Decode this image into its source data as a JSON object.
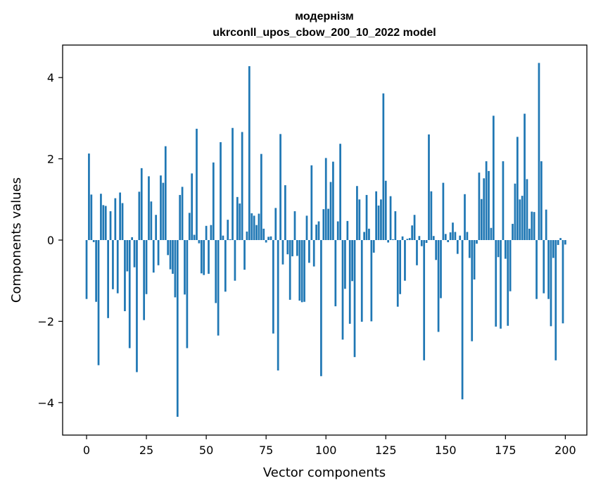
{
  "chart_data": {
    "type": "bar",
    "title_line1": "модернізм",
    "title_line2": "ukrconll_upos_cbow_200_10_2022 model",
    "xlabel": "Vector components",
    "ylabel": "Components values",
    "xlim": [
      -10,
      209
    ],
    "ylim": [
      -4.8,
      4.8
    ],
    "xticks": [
      0,
      25,
      50,
      75,
      100,
      125,
      150,
      175,
      200
    ],
    "xtick_labels": [
      "0",
      "25",
      "50",
      "75",
      "100",
      "125",
      "150",
      "175",
      "200"
    ],
    "yticks": [
      -4,
      -2,
      0,
      2,
      4
    ],
    "ytick_labels": [
      "−4",
      "−2",
      "0",
      "2",
      "4"
    ],
    "bar_color": "#1f77b4",
    "values": [
      -1.45,
      2.13,
      1.12,
      -0.05,
      -1.52,
      -3.08,
      1.14,
      0.86,
      0.84,
      -1.92,
      0.71,
      -1.21,
      1.03,
      -1.31,
      1.17,
      0.91,
      -1.75,
      -0.77,
      -2.66,
      0.07,
      -0.67,
      -3.25,
      1.19,
      1.77,
      -1.97,
      -1.33,
      1.57,
      0.95,
      -0.8,
      0.62,
      -0.62,
      1.59,
      1.41,
      2.31,
      -0.37,
      -0.72,
      -0.83,
      -1.41,
      -4.35,
      1.11,
      1.31,
      -1.34,
      -2.66,
      0.67,
      1.64,
      0.13,
      2.74,
      -0.08,
      -0.82,
      -0.86,
      0.35,
      -0.83,
      0.37,
      1.91,
      -1.55,
      -2.35,
      2.41,
      0.11,
      -1.27,
      0.5,
      0.02,
      2.76,
      -1.0,
      1.06,
      0.9,
      2.66,
      -0.73,
      0.21,
      4.28,
      0.66,
      0.6,
      0.37,
      0.65,
      2.12,
      0.28,
      -0.06,
      0.08,
      0.09,
      -2.3,
      0.79,
      -3.21,
      2.61,
      -0.6,
      1.35,
      -0.35,
      -1.47,
      -0.4,
      0.71,
      -0.39,
      -1.49,
      -1.53,
      -1.52,
      0.6,
      -0.56,
      1.84,
      -0.65,
      0.38,
      0.46,
      -3.35,
      0.76,
      2.02,
      0.77,
      1.43,
      1.93,
      -1.63,
      0.46,
      2.37,
      -2.45,
      -1.2,
      0.47,
      -2.06,
      -1.01,
      -2.88,
      1.33,
      1.0,
      -2.01,
      0.2,
      1.11,
      0.28,
      -2.0,
      -0.31,
      1.2,
      0.85,
      1.0,
      3.61,
      1.46,
      -0.06,
      1.08,
      0.02,
      0.71,
      -1.64,
      -1.33,
      0.09,
      -1.0,
      0.03,
      0.05,
      0.36,
      0.62,
      -0.62,
      0.1,
      -0.15,
      -2.96,
      -0.07,
      2.6,
      1.2,
      0.1,
      -0.49,
      -2.26,
      -1.43,
      1.41,
      0.15,
      -0.05,
      0.19,
      0.43,
      0.2,
      -0.34,
      0.11,
      -3.92,
      1.13,
      0.2,
      -0.44,
      -2.49,
      -0.97,
      -0.09,
      1.66,
      1.01,
      1.52,
      1.94,
      1.7,
      0.3,
      3.06,
      -2.13,
      -0.42,
      -2.18,
      1.94,
      -0.46,
      -2.11,
      -1.26,
      0.4,
      1.39,
      2.54,
      1.0,
      1.09,
      3.11,
      1.5,
      0.28,
      0.7,
      0.69,
      -1.45,
      4.36,
      1.94,
      -1.31,
      0.75,
      -1.45,
      -2.12,
      -0.44,
      -2.96,
      -0.12,
      0.05,
      -2.05,
      -0.11
    ]
  }
}
